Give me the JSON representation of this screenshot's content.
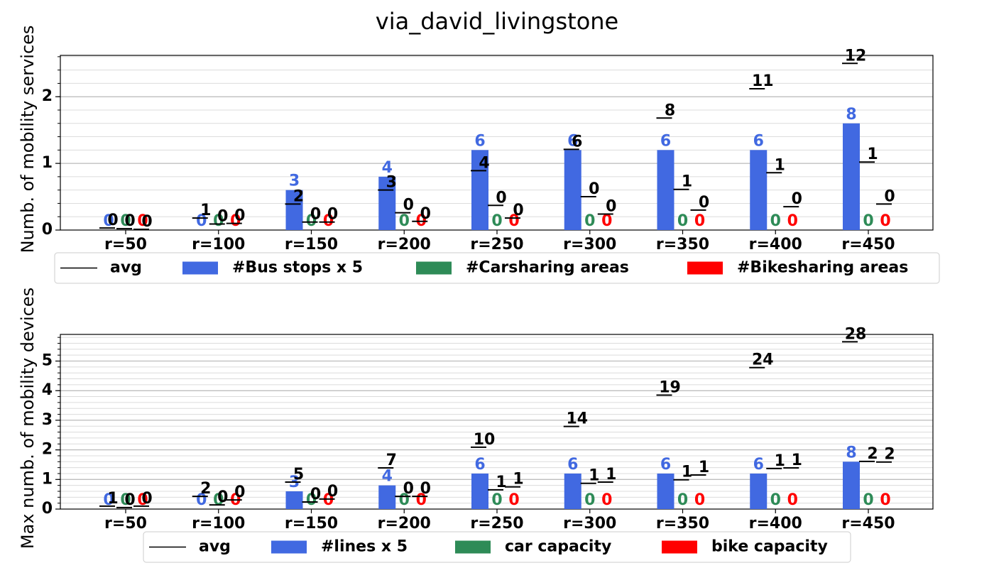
{
  "title": "via_david_livingstone",
  "chart_data": [
    {
      "type": "bar",
      "ylabel": "Numb. of mobility services",
      "categories": [
        "r=50",
        "r=100",
        "r=150",
        "r=200",
        "r=250",
        "r=300",
        "r=350",
        "r=400",
        "r=450"
      ],
      "ylim": [
        0,
        2.62
      ],
      "yticks": [
        0,
        1,
        2
      ],
      "yminor": 0.2,
      "grid": true,
      "series": [
        {
          "name": "#Bus stops x 5",
          "color": "#4169e1",
          "values": [
            0,
            0,
            0.6,
            0.8,
            1.2,
            1.2,
            1.2,
            1.2,
            1.6
          ],
          "value_labels": [
            "0",
            "0",
            "3",
            "4",
            "6",
            "6",
            "6",
            "6",
            "8"
          ]
        },
        {
          "name": "#Carsharing areas",
          "color": "#2e8b57",
          "values": [
            0,
            0,
            0,
            0,
            0,
            0,
            0,
            0,
            0
          ]
        },
        {
          "name": "#Bikesharing areas",
          "color": "#ff0000",
          "values": [
            0,
            0,
            0,
            0,
            0,
            0,
            0,
            0,
            0
          ]
        }
      ],
      "avg": {
        "name": "avg",
        "color": "#000000",
        "values": [
          [
            0.03,
            0.18,
            0.39,
            0.6,
            0.89,
            1.21,
            1.68,
            2.12,
            2.5
          ],
          [
            0.02,
            0.09,
            0.12,
            0.26,
            0.37,
            0.5,
            0.61,
            0.86,
            1.02
          ],
          [
            0.01,
            0.1,
            0.12,
            0.13,
            0.18,
            0.24,
            0.3,
            0.35,
            0.39
          ]
        ],
        "value_labels": [
          [
            "0",
            "1",
            "2",
            "3",
            "4",
            "6",
            "8",
            "11",
            "12"
          ],
          [
            "0",
            "0",
            "0",
            "0",
            "0",
            "0",
            "1",
            "1",
            "1"
          ],
          [
            "0",
            "0",
            "0",
            "0",
            "0",
            "0",
            "0",
            "0",
            "0"
          ]
        ]
      }
    },
    {
      "type": "bar",
      "ylabel": "Max numb. of mobility devices",
      "categories": [
        "r=50",
        "r=100",
        "r=150",
        "r=200",
        "r=250",
        "r=300",
        "r=350",
        "r=400",
        "r=450"
      ],
      "ylim": [
        0,
        5.9
      ],
      "yticks": [
        0,
        1,
        2,
        3,
        4,
        5
      ],
      "yminor": 0.2,
      "grid": true,
      "series": [
        {
          "name": "#lines x 5",
          "color": "#4169e1",
          "values": [
            0,
            0,
            0.6,
            0.8,
            1.2,
            1.2,
            1.2,
            1.2,
            1.6
          ],
          "value_labels": [
            "0",
            "0",
            "3",
            "4",
            "6",
            "6",
            "6",
            "6",
            "8"
          ]
        },
        {
          "name": "car capacity",
          "color": "#2e8b57",
          "values": [
            0,
            0,
            0,
            0,
            0,
            0,
            0,
            0,
            0
          ]
        },
        {
          "name": "bike capacity",
          "color": "#ff0000",
          "values": [
            0,
            0,
            0,
            0,
            0,
            0,
            0,
            0,
            0
          ]
        }
      ],
      "avg": {
        "name": "avg",
        "color": "#000000",
        "values": [
          [
            0.1,
            0.43,
            0.91,
            1.39,
            2.09,
            2.79,
            3.85,
            4.78,
            5.65
          ],
          [
            0.05,
            0.14,
            0.24,
            0.43,
            0.65,
            0.87,
            0.99,
            1.37,
            1.61
          ],
          [
            0.1,
            0.31,
            0.34,
            0.43,
            0.75,
            0.91,
            1.15,
            1.39,
            1.59
          ]
        ],
        "value_labels": [
          [
            "1",
            "2",
            "5",
            "7",
            "10",
            "14",
            "19",
            "24",
            "28"
          ],
          [
            "0",
            "0",
            "0",
            "0",
            "1",
            "1",
            "1",
            "1",
            "2"
          ],
          [
            "0",
            "0",
            "0",
            "0",
            "1",
            "1",
            "1",
            "1",
            "2"
          ]
        ]
      }
    }
  ]
}
